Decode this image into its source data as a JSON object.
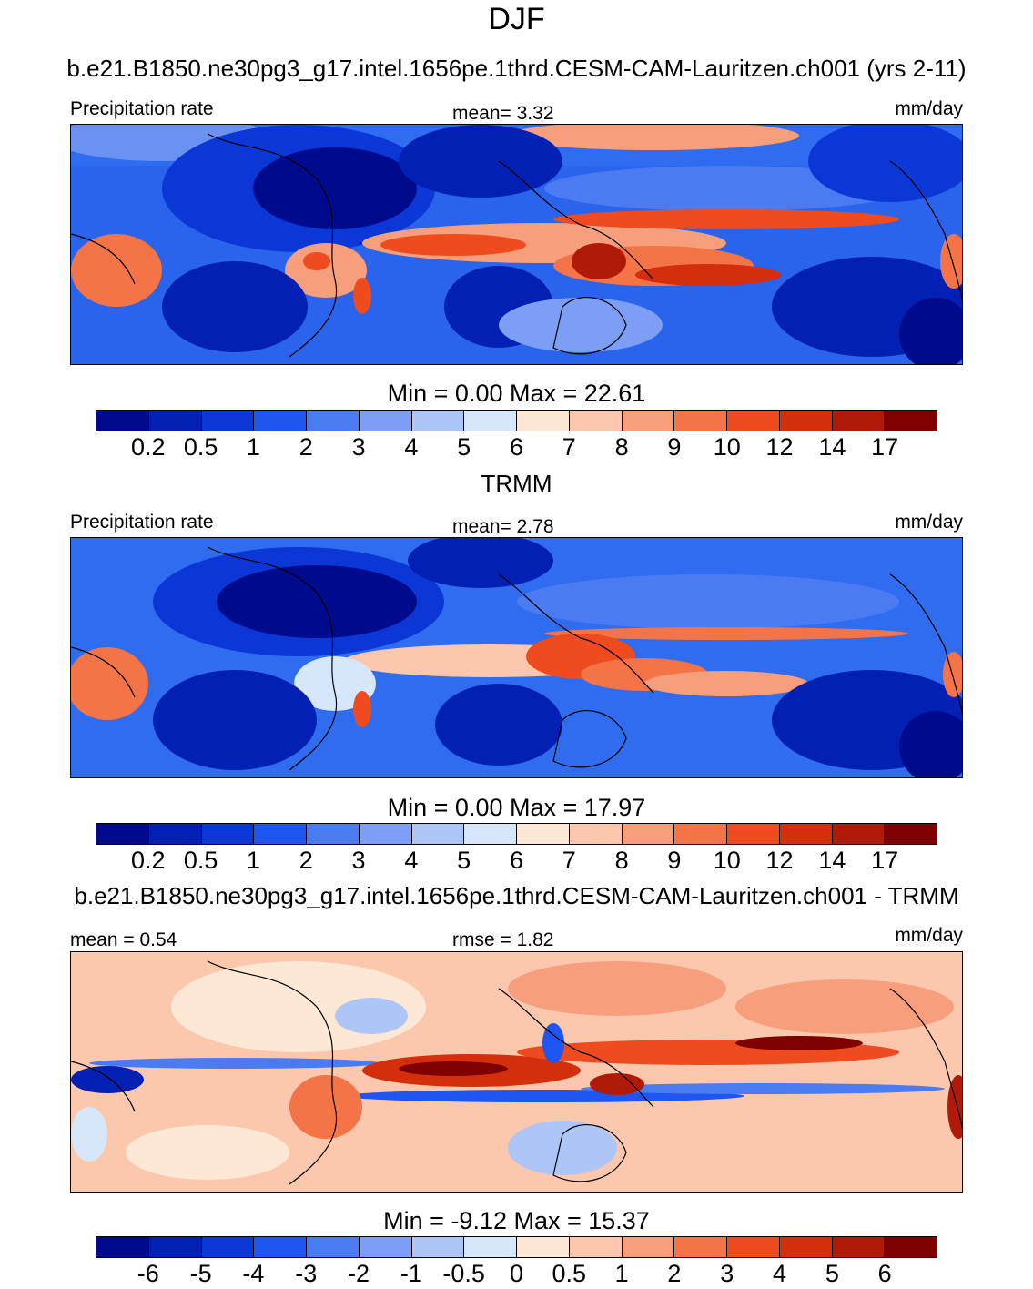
{
  "title": "DJF",
  "panels": [
    {
      "case_title": "b.e21.B1850.ne30pg3_g17.intel.1656pe.1thrd.CESM-CAM-Lauritzen.ch001 (yrs 2-11)",
      "left_label": "Precipitation rate",
      "center_label": "mean=   3.32",
      "right_label": "mm/day",
      "minmax": "Min =   0.00 Max =  22.61"
    },
    {
      "case_title": "TRMM",
      "left_label": "Precipitation rate",
      "center_label": "mean=   2.78",
      "right_label": "mm/day",
      "minmax": "Min =   0.00 Max =  17.97"
    },
    {
      "case_title": "b.e21.B1850.ne30pg3_g17.intel.1656pe.1thrd.CESM-CAM-Lauritzen.ch001 - TRMM",
      "left_label": "mean =   0.54",
      "center_label": "rmse =   1.82",
      "right_label": "mm/day",
      "minmax": "Min =  -9.12 Max =  15.37"
    }
  ],
  "colorbar": {
    "colors": [
      "#000a8c",
      "#0320b4",
      "#0a37d6",
      "#1f55f0",
      "#4a7bf3",
      "#7c9ff5",
      "#aec5f8",
      "#d7e7fb",
      "#fde8d6",
      "#fbc8ae",
      "#f79f7d",
      "#f47447",
      "#ef4b1e",
      "#d42e0c",
      "#b01a08",
      "#7f0000"
    ],
    "precip_labels": [
      "0.2",
      "0.5",
      "1",
      "2",
      "3",
      "4",
      "5",
      "6",
      "7",
      "8",
      "9",
      "10",
      "12",
      "14",
      "17"
    ],
    "diff_labels": [
      "-6",
      "-5",
      "-4",
      "-3",
      "-2",
      "-1",
      "-0.5",
      "0",
      "0.5",
      "1",
      "2",
      "3",
      "4",
      "5",
      "6"
    ]
  },
  "chart_data": [
    {
      "type": "heatmap",
      "title": "b.e21.B1850.ne30pg3_g17.intel.1656pe.1thrd.CESM-CAM-Lauritzen.ch001 (yrs 2-11)",
      "variable": "Precipitation rate",
      "units": "mm/day",
      "mean": 3.32,
      "min": 0.0,
      "max": 22.61,
      "contour_levels": [
        0.2,
        0.5,
        1,
        2,
        3,
        4,
        5,
        6,
        7,
        8,
        9,
        10,
        12,
        14,
        17
      ]
    },
    {
      "type": "heatmap",
      "title": "TRMM",
      "variable": "Precipitation rate",
      "units": "mm/day",
      "mean": 2.78,
      "min": 0.0,
      "max": 17.97,
      "contour_levels": [
        0.2,
        0.5,
        1,
        2,
        3,
        4,
        5,
        6,
        7,
        8,
        9,
        10,
        12,
        14,
        17
      ]
    },
    {
      "type": "heatmap",
      "title": "b.e21.B1850.ne30pg3_g17.intel.1656pe.1thrd.CESM-CAM-Lauritzen.ch001 - TRMM",
      "units": "mm/day",
      "mean": 0.54,
      "rmse": 1.82,
      "min": -9.12,
      "max": 15.37,
      "contour_levels": [
        -6,
        -5,
        -4,
        -3,
        -2,
        -1,
        -0.5,
        0,
        0.5,
        1,
        2,
        3,
        4,
        5,
        6
      ]
    }
  ]
}
